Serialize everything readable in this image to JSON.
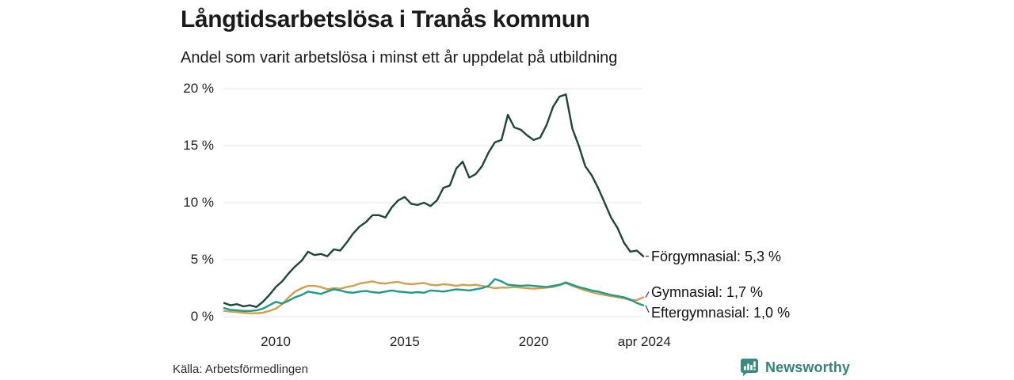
{
  "header": {
    "title": "Långtidsarbetslösa i Tranås kommun",
    "subtitle": "Andel som varit arbetslösa i minst ett år uppdelat på utbildning"
  },
  "footer": {
    "source": "Källa: Arbetsförmedlingen",
    "brand_name": "Newsworthy",
    "brand_color": "#35837b",
    "brand_icon": "newsworthy-speech-bubble-bar-chart-icon"
  },
  "colors": {
    "grid": "#e4e4e4",
    "text": "#1a1a1a",
    "axis_text": "#222222",
    "connector": "#444444"
  },
  "chart_data": {
    "type": "line",
    "title": "Långtidsarbetslösa i Tranås kommun",
    "subtitle": "Andel som varit arbetslösa i minst ett år uppdelat på utbildning",
    "unit": "percent",
    "grid": true,
    "legend_position": "end-of-line labels, right of plot",
    "x_axis": {
      "label": "",
      "range": [
        2008.0,
        2024.25
      ],
      "ticks": [
        {
          "t": 2010,
          "label": "2010"
        },
        {
          "t": 2015,
          "label": "2015"
        },
        {
          "t": 2020,
          "label": "2020"
        },
        {
          "t": 2024.29,
          "label": "apr 2024"
        }
      ]
    },
    "y_axis": {
      "label": "",
      "range": [
        0,
        20
      ],
      "ticks": [
        {
          "v": 20,
          "label": "20 %"
        },
        {
          "v": 15,
          "label": "15 %"
        },
        {
          "v": 10,
          "label": "10 %"
        },
        {
          "v": 5,
          "label": "5 %"
        },
        {
          "v": 0,
          "label": "0 %"
        }
      ]
    },
    "series": [
      {
        "name": "Förgymnasial",
        "color": "#1c463a",
        "end_value": 5.3,
        "end_label": "Förgymnasial: 5,3 %",
        "points": [
          [
            2008.0,
            1.2
          ],
          [
            2008.25,
            1.0
          ],
          [
            2008.5,
            1.1
          ],
          [
            2008.75,
            0.9
          ],
          [
            2009.0,
            1.0
          ],
          [
            2009.25,
            0.85
          ],
          [
            2009.5,
            1.3
          ],
          [
            2009.75,
            1.9
          ],
          [
            2010.0,
            2.6
          ],
          [
            2010.25,
            3.1
          ],
          [
            2010.5,
            3.8
          ],
          [
            2010.75,
            4.4
          ],
          [
            2011.0,
            4.9
          ],
          [
            2011.25,
            5.7
          ],
          [
            2011.5,
            5.4
          ],
          [
            2011.75,
            5.5
          ],
          [
            2012.0,
            5.3
          ],
          [
            2012.25,
            5.9
          ],
          [
            2012.5,
            5.8
          ],
          [
            2012.75,
            6.5
          ],
          [
            2013.0,
            7.3
          ],
          [
            2013.25,
            7.9
          ],
          [
            2013.5,
            8.3
          ],
          [
            2013.75,
            8.9
          ],
          [
            2014.0,
            8.9
          ],
          [
            2014.25,
            8.7
          ],
          [
            2014.5,
            9.6
          ],
          [
            2014.75,
            10.2
          ],
          [
            2015.0,
            10.5
          ],
          [
            2015.25,
            9.9
          ],
          [
            2015.5,
            9.8
          ],
          [
            2015.75,
            10.0
          ],
          [
            2016.0,
            9.7
          ],
          [
            2016.25,
            10.2
          ],
          [
            2016.5,
            11.3
          ],
          [
            2016.75,
            11.5
          ],
          [
            2017.0,
            13.0
          ],
          [
            2017.25,
            13.6
          ],
          [
            2017.5,
            12.2
          ],
          [
            2017.75,
            12.5
          ],
          [
            2018.0,
            13.2
          ],
          [
            2018.25,
            14.4
          ],
          [
            2018.5,
            15.3
          ],
          [
            2018.75,
            15.5
          ],
          [
            2019.0,
            17.7
          ],
          [
            2019.25,
            16.6
          ],
          [
            2019.5,
            16.4
          ],
          [
            2019.75,
            15.9
          ],
          [
            2020.0,
            15.5
          ],
          [
            2020.25,
            15.7
          ],
          [
            2020.5,
            16.8
          ],
          [
            2020.75,
            18.4
          ],
          [
            2021.0,
            19.3
          ],
          [
            2021.25,
            19.5
          ],
          [
            2021.5,
            16.5
          ],
          [
            2021.75,
            15.0
          ],
          [
            2022.0,
            13.2
          ],
          [
            2022.25,
            12.4
          ],
          [
            2022.5,
            11.3
          ],
          [
            2022.75,
            10.0
          ],
          [
            2023.0,
            8.7
          ],
          [
            2023.25,
            7.8
          ],
          [
            2023.5,
            6.5
          ],
          [
            2023.75,
            5.7
          ],
          [
            2024.0,
            5.8
          ],
          [
            2024.25,
            5.3
          ]
        ]
      },
      {
        "name": "Gymnasial",
        "color": "#d2a04c",
        "end_value": 1.7,
        "end_label": "Gymnasial: 1,7 %",
        "points": [
          [
            2008.0,
            0.5
          ],
          [
            2008.25,
            0.45
          ],
          [
            2008.5,
            0.4
          ],
          [
            2008.75,
            0.35
          ],
          [
            2009.0,
            0.3
          ],
          [
            2009.25,
            0.3
          ],
          [
            2009.5,
            0.35
          ],
          [
            2009.75,
            0.5
          ],
          [
            2010.0,
            0.7
          ],
          [
            2010.25,
            1.1
          ],
          [
            2010.5,
            1.7
          ],
          [
            2010.75,
            2.2
          ],
          [
            2011.0,
            2.5
          ],
          [
            2011.25,
            2.7
          ],
          [
            2011.5,
            2.7
          ],
          [
            2011.75,
            2.6
          ],
          [
            2012.0,
            2.4
          ],
          [
            2012.25,
            2.5
          ],
          [
            2012.5,
            2.45
          ],
          [
            2012.75,
            2.6
          ],
          [
            2013.0,
            2.7
          ],
          [
            2013.25,
            2.9
          ],
          [
            2013.5,
            3.0
          ],
          [
            2013.75,
            3.1
          ],
          [
            2014.0,
            2.95
          ],
          [
            2014.25,
            2.9
          ],
          [
            2014.5,
            3.0
          ],
          [
            2014.75,
            3.05
          ],
          [
            2015.0,
            2.9
          ],
          [
            2015.25,
            2.85
          ],
          [
            2015.5,
            2.9
          ],
          [
            2015.75,
            2.95
          ],
          [
            2016.0,
            2.8
          ],
          [
            2016.25,
            2.75
          ],
          [
            2016.5,
            2.85
          ],
          [
            2016.75,
            2.8
          ],
          [
            2017.0,
            2.7
          ],
          [
            2017.25,
            2.8
          ],
          [
            2017.5,
            2.75
          ],
          [
            2017.75,
            2.8
          ],
          [
            2018.0,
            2.7
          ],
          [
            2018.25,
            2.6
          ],
          [
            2018.5,
            2.5
          ],
          [
            2018.75,
            2.55
          ],
          [
            2019.0,
            2.55
          ],
          [
            2019.25,
            2.6
          ],
          [
            2019.5,
            2.55
          ],
          [
            2019.75,
            2.5
          ],
          [
            2020.0,
            2.45
          ],
          [
            2020.25,
            2.5
          ],
          [
            2020.5,
            2.55
          ],
          [
            2020.75,
            2.6
          ],
          [
            2021.0,
            2.75
          ],
          [
            2021.25,
            2.95
          ],
          [
            2021.5,
            2.7
          ],
          [
            2021.75,
            2.5
          ],
          [
            2022.0,
            2.3
          ],
          [
            2022.25,
            2.15
          ],
          [
            2022.5,
            2.0
          ],
          [
            2022.75,
            1.9
          ],
          [
            2023.0,
            1.8
          ],
          [
            2023.25,
            1.7
          ],
          [
            2023.5,
            1.6
          ],
          [
            2023.75,
            1.45
          ],
          [
            2024.0,
            1.45
          ],
          [
            2024.25,
            1.7
          ]
        ]
      },
      {
        "name": "Eftergymnasial",
        "color": "#1a9c8b",
        "end_value": 1.0,
        "end_label": "Eftergymnasial: 1,0 %",
        "points": [
          [
            2008.0,
            0.75
          ],
          [
            2008.25,
            0.6
          ],
          [
            2008.5,
            0.55
          ],
          [
            2008.75,
            0.5
          ],
          [
            2009.0,
            0.5
          ],
          [
            2009.25,
            0.55
          ],
          [
            2009.5,
            0.7
          ],
          [
            2009.75,
            1.0
          ],
          [
            2010.0,
            1.3
          ],
          [
            2010.25,
            1.15
          ],
          [
            2010.5,
            1.4
          ],
          [
            2010.75,
            1.7
          ],
          [
            2011.0,
            1.9
          ],
          [
            2011.25,
            2.2
          ],
          [
            2011.5,
            2.1
          ],
          [
            2011.75,
            2.0
          ],
          [
            2012.0,
            2.2
          ],
          [
            2012.25,
            2.4
          ],
          [
            2012.5,
            2.3
          ],
          [
            2012.75,
            2.15
          ],
          [
            2013.0,
            2.1
          ],
          [
            2013.25,
            2.2
          ],
          [
            2013.5,
            2.25
          ],
          [
            2013.75,
            2.15
          ],
          [
            2014.0,
            2.1
          ],
          [
            2014.25,
            2.2
          ],
          [
            2014.5,
            2.3
          ],
          [
            2014.75,
            2.2
          ],
          [
            2015.0,
            2.15
          ],
          [
            2015.25,
            2.1
          ],
          [
            2015.5,
            2.15
          ],
          [
            2015.75,
            2.1
          ],
          [
            2016.0,
            2.3
          ],
          [
            2016.25,
            2.25
          ],
          [
            2016.5,
            2.2
          ],
          [
            2016.75,
            2.3
          ],
          [
            2017.0,
            2.4
          ],
          [
            2017.25,
            2.35
          ],
          [
            2017.5,
            2.3
          ],
          [
            2017.75,
            2.4
          ],
          [
            2018.0,
            2.5
          ],
          [
            2018.25,
            2.7
          ],
          [
            2018.5,
            3.3
          ],
          [
            2018.75,
            3.1
          ],
          [
            2019.0,
            2.8
          ],
          [
            2019.25,
            2.75
          ],
          [
            2019.5,
            2.7
          ],
          [
            2019.75,
            2.75
          ],
          [
            2020.0,
            2.7
          ],
          [
            2020.25,
            2.65
          ],
          [
            2020.5,
            2.6
          ],
          [
            2020.75,
            2.7
          ],
          [
            2021.0,
            2.8
          ],
          [
            2021.25,
            3.0
          ],
          [
            2021.5,
            2.8
          ],
          [
            2021.75,
            2.6
          ],
          [
            2022.0,
            2.45
          ],
          [
            2022.25,
            2.3
          ],
          [
            2022.5,
            2.2
          ],
          [
            2022.75,
            2.05
          ],
          [
            2023.0,
            1.9
          ],
          [
            2023.25,
            1.8
          ],
          [
            2023.5,
            1.7
          ],
          [
            2023.75,
            1.5
          ],
          [
            2024.0,
            1.2
          ],
          [
            2024.25,
            1.0
          ]
        ]
      }
    ]
  }
}
